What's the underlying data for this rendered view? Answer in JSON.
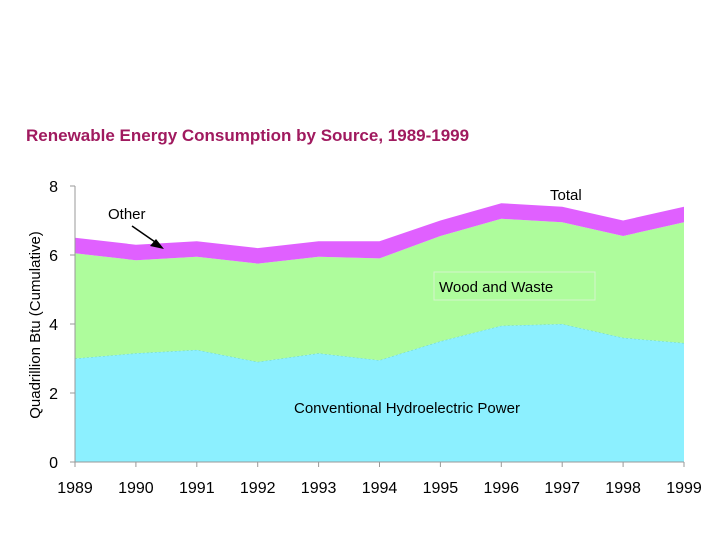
{
  "chart_data": {
    "type": "area",
    "stacked": true,
    "title": "Renewable Energy Consumption by Source, 1989-1999",
    "xlabel": "",
    "ylabel": "Quadrillion Btu (Cumulative)",
    "ylim": [
      0,
      8
    ],
    "yticks": [
      "0",
      "2",
      "4",
      "6",
      "8"
    ],
    "x": [
      "1989",
      "1990",
      "1991",
      "1992",
      "1993",
      "1994",
      "1995",
      "1996",
      "1997",
      "1998",
      "1999"
    ],
    "series": [
      {
        "name": "Conventional Hydroelectric Power",
        "color": "#8cf0ff",
        "values": [
          3.0,
          3.15,
          3.25,
          2.9,
          3.15,
          2.95,
          3.5,
          3.95,
          4.0,
          3.6,
          3.45
        ]
      },
      {
        "name": "Wood and Waste",
        "color": "#aefc9c",
        "values": [
          3.05,
          2.7,
          2.7,
          2.85,
          2.8,
          2.95,
          3.05,
          3.1,
          2.95,
          2.95,
          3.5
        ]
      },
      {
        "name": "Other",
        "color": "#e060ff",
        "values": [
          0.45,
          0.45,
          0.45,
          0.45,
          0.45,
          0.5,
          0.45,
          0.45,
          0.45,
          0.45,
          0.45
        ]
      }
    ],
    "annotations": [
      {
        "text": "Total"
      },
      {
        "text": "Other"
      },
      {
        "text": "Wood and Waste"
      },
      {
        "text": "Conventional Hydroelectric Power"
      }
    ]
  }
}
